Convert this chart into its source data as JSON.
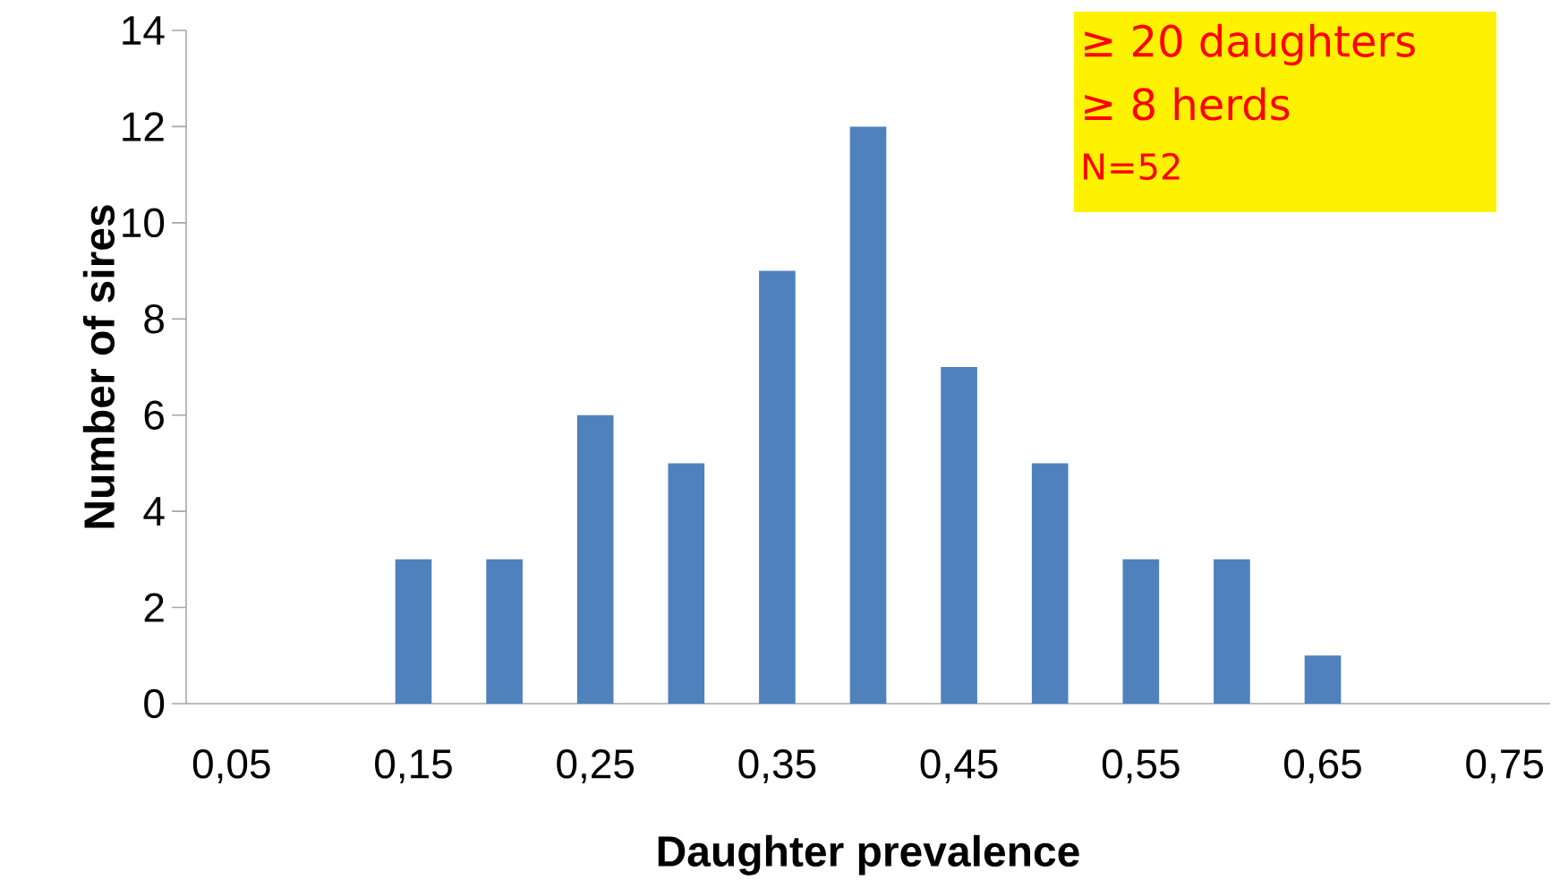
{
  "chart_data": {
    "type": "bar",
    "xlabel": "Daughter prevalence",
    "ylabel": "Number of sires",
    "categories": [
      "0,05",
      null,
      "0,15",
      null,
      "0,25",
      null,
      "0,35",
      null,
      "0,45",
      null,
      "0,55",
      null,
      "0,65",
      null,
      "0,75"
    ],
    "values": [
      0,
      0,
      3,
      3,
      6,
      5,
      9,
      12,
      7,
      5,
      3,
      3,
      1,
      0,
      0
    ],
    "color": "#4f81bd",
    "ylim": [
      0,
      14
    ],
    "yticks": [
      0,
      2,
      4,
      6,
      8,
      10,
      12,
      14
    ],
    "annotations": [
      "≥ 20 daughters",
      "≥ 8 herds",
      "N=52"
    ]
  }
}
